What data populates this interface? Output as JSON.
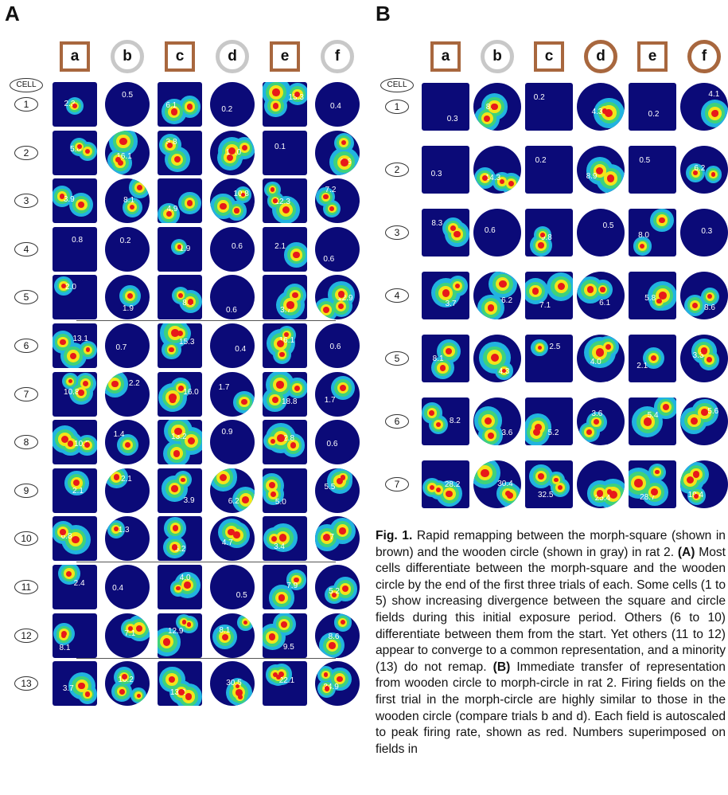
{
  "panels": {
    "A": {
      "label": "A",
      "cell_header": "CELL",
      "columns": [
        {
          "label": "a",
          "shape": "square",
          "color": "#a8673e"
        },
        {
          "label": "b",
          "shape": "circle",
          "color": "#c8c8c8"
        },
        {
          "label": "c",
          "shape": "square",
          "color": "#a8673e"
        },
        {
          "label": "d",
          "shape": "circle",
          "color": "#c8c8c8"
        },
        {
          "label": "e",
          "shape": "square",
          "color": "#a8673e"
        },
        {
          "label": "f",
          "shape": "circle",
          "color": "#c8c8c8"
        }
      ],
      "rows": [
        {
          "cell": "1",
          "values": [
            "2.3",
            "0.5",
            "6.1",
            "0.2",
            "13.3",
            "0.4"
          ]
        },
        {
          "cell": "2",
          "values": [
            "5.8",
            "16.1",
            "3.8",
            "17.0",
            "0.1",
            "9.6"
          ]
        },
        {
          "cell": "3",
          "values": [
            "3.9",
            "8.1",
            "4.9",
            "10.8",
            "12.3",
            "7.2"
          ]
        },
        {
          "cell": "4",
          "values": [
            "0.8",
            "0.2",
            "1.9",
            "0.6",
            "2.1",
            "0.6"
          ]
        },
        {
          "cell": "5",
          "values": [
            "2.0",
            "1.9",
            "8.2",
            "0.6",
            "3.7",
            "12.9"
          ]
        },
        {
          "cell": "6",
          "values": [
            "13.1",
            "0.7",
            "15.3",
            "0.4",
            "16.1",
            "0.6"
          ]
        },
        {
          "cell": "7",
          "values": [
            "10.8",
            "2.2",
            "16.0",
            "1.7",
            "18.8",
            "1.7"
          ]
        },
        {
          "cell": "8",
          "values": [
            "10.5",
            "1.4",
            "13.2",
            "0.9",
            "12.8",
            "0.6"
          ]
        },
        {
          "cell": "9",
          "values": [
            "2.1",
            "2.1",
            "3.9",
            "6.2",
            "5.0",
            "5.5"
          ]
        },
        {
          "cell": "10",
          "values": [
            "6.8",
            "1.3",
            "5.2",
            "4.7",
            "3.4",
            "3.7"
          ]
        },
        {
          "cell": "11",
          "values": [
            "2.4",
            "0.4",
            "4.0",
            "0.5",
            "7.9",
            "5.2"
          ]
        },
        {
          "cell": "12",
          "values": [
            "8.1",
            "7.1",
            "12.9",
            "8.1",
            "9.5",
            "8.6"
          ]
        },
        {
          "cell": "13",
          "values": [
            "3.7",
            "16.2",
            "13.2",
            "30.5",
            "22.1",
            "34.9"
          ]
        }
      ]
    },
    "B": {
      "label": "B",
      "cell_header": "CELL",
      "columns": [
        {
          "label": "a",
          "shape": "square",
          "color": "#a8673e"
        },
        {
          "label": "b",
          "shape": "circle",
          "color": "#c8c8c8"
        },
        {
          "label": "c",
          "shape": "square",
          "color": "#a8673e"
        },
        {
          "label": "d",
          "shape": "circle",
          "color": "#a8673e"
        },
        {
          "label": "e",
          "shape": "square",
          "color": "#a8673e"
        },
        {
          "label": "f",
          "shape": "circle",
          "color": "#a8673e"
        }
      ],
      "rows": [
        {
          "cell": "1",
          "values": [
            "0.3",
            "8.0",
            "0.2",
            "4.3",
            "0.2",
            "4.1"
          ]
        },
        {
          "cell": "2",
          "values": [
            "0.3",
            "14.3",
            "0.2",
            "8.9",
            "0.5",
            "6.2"
          ]
        },
        {
          "cell": "3",
          "values": [
            "8.3",
            "0.6",
            "9.8",
            "0.5",
            "8.0",
            "0.3"
          ]
        },
        {
          "cell": "4",
          "values": [
            "3.7",
            "6.2",
            "7.1",
            "6.1",
            "5.8",
            "8.6"
          ]
        },
        {
          "cell": "5",
          "values": [
            "8.1",
            "4.3",
            "2.5",
            "4.0",
            "2.1",
            "3.3"
          ]
        },
        {
          "cell": "6",
          "values": [
            "8.2",
            "3.6",
            "5.2",
            "3.6",
            "5.4",
            "5.6"
          ]
        },
        {
          "cell": "7",
          "values": [
            "28.2",
            "30.4",
            "32.5",
            "25.4",
            "28.7",
            "19.4"
          ]
        }
      ]
    }
  },
  "caption": {
    "figure_label": "Fig. 1.",
    "text_1": " Rapid remapping between the morph-square (shown in brown) and the wooden circle (shown in gray) in rat 2. ",
    "ref_a": "(A)",
    "text_2": " Most cells differentiate between the morph-square and the wooden circle by the end of the first three trials of each. Some cells (1 to 5) show increasing divergence between the square and circle fields during this initial exposure period. Others (6 to 10) differentiate between them from the start. Yet others (11 to 12) appear to converge to a common representation, and a minority (13) do not remap. ",
    "ref_b": "(B)",
    "text_3": " Immediate transfer of representation from wooden circle to morph-circle in rat 2. Firing fields on the first trial in the morph-circle are highly similar to those in the wooden circle (compare trials b and d). Each field is autoscaled to peak firing rate, shown as red. Numbers superimposed on fields in"
  },
  "colors": {
    "background_field": "#0b0a78",
    "low": "#21b3e0",
    "mid": "#3fd27a",
    "high": "#f2e51a",
    "peak": "#e8191a",
    "square_border": "#a8673e",
    "wooden_circle": "#c8c8c8"
  }
}
